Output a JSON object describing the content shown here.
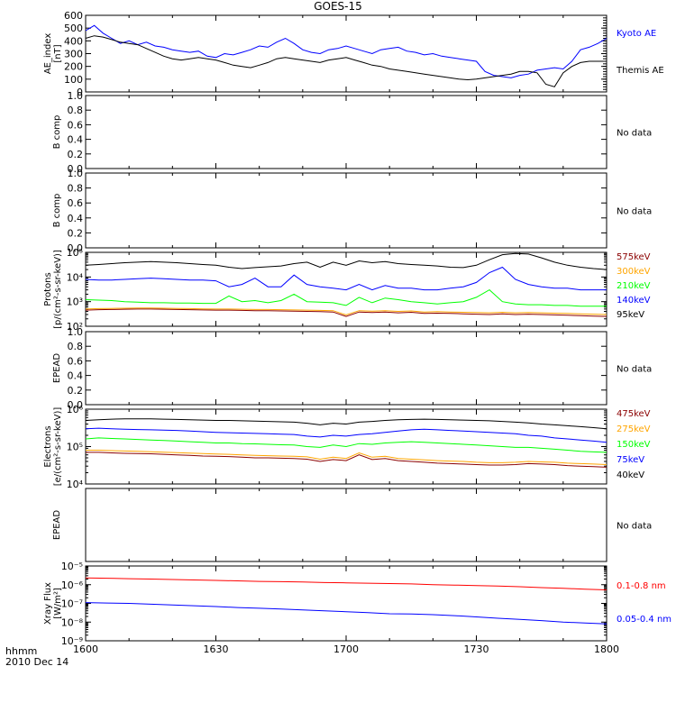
{
  "title": "GOES-15",
  "footer": {
    "line1": "hhmm",
    "line2": "2010 Dec 14"
  },
  "colors": {
    "frame": "#000000",
    "blue": "#0000ff",
    "black": "#000000",
    "green": "#00ff00",
    "orange": "#ffa500",
    "darkred": "#8b0000",
    "red": "#ff0000"
  },
  "chart_data": [
    {
      "id": "ae",
      "type": "line",
      "yscale": "linear",
      "ylim": [
        0,
        600
      ],
      "ylabel_lines": [
        "AE_index",
        "[nT]"
      ],
      "xlim": [
        0,
        120
      ],
      "xticks_minutes": [
        0,
        30,
        60,
        90,
        120
      ],
      "xtick_labels": [
        "1600",
        "1630",
        "1700",
        "1730",
        "1800"
      ],
      "yticks": [
        0,
        100,
        200,
        300,
        400,
        500,
        600
      ],
      "ytick_labels": [
        "0",
        "100",
        "200",
        "300",
        "400",
        "500",
        "600"
      ],
      "x": [
        0,
        2,
        4,
        6,
        8,
        10,
        12,
        14,
        16,
        18,
        20,
        22,
        24,
        26,
        28,
        30,
        32,
        34,
        36,
        38,
        40,
        42,
        44,
        46,
        48,
        50,
        52,
        54,
        56,
        58,
        60,
        62,
        64,
        66,
        68,
        70,
        72,
        74,
        76,
        78,
        80,
        82,
        84,
        86,
        88,
        90,
        92,
        94,
        96,
        98,
        100,
        102,
        104,
        106,
        108,
        110,
        112,
        114,
        116,
        118,
        120
      ],
      "series": [
        {
          "name": "Kyoto AE",
          "color": "blue",
          "values": [
            480,
            520,
            460,
            420,
            380,
            400,
            370,
            390,
            360,
            350,
            330,
            320,
            310,
            320,
            280,
            270,
            300,
            290,
            310,
            330,
            360,
            350,
            390,
            420,
            380,
            330,
            310,
            300,
            330,
            340,
            360,
            340,
            320,
            300,
            330,
            340,
            350,
            320,
            310,
            290,
            300,
            280,
            270,
            260,
            250,
            240,
            160,
            130,
            120,
            110,
            130,
            140,
            170,
            180,
            190,
            180,
            240,
            330,
            350,
            380,
            420
          ]
        },
        {
          "name": "Themis AE",
          "color": "black",
          "values": [
            420,
            440,
            430,
            410,
            390,
            380,
            370,
            340,
            310,
            280,
            260,
            250,
            260,
            270,
            260,
            250,
            230,
            210,
            200,
            190,
            210,
            230,
            260,
            270,
            260,
            250,
            240,
            230,
            250,
            260,
            270,
            250,
            230,
            210,
            200,
            180,
            170,
            160,
            150,
            140,
            130,
            120,
            110,
            100,
            95,
            100,
            110,
            120,
            130,
            140,
            160,
            160,
            150,
            60,
            40,
            150,
            200,
            230,
            240,
            240,
            240
          ]
        }
      ],
      "legend": [
        "Kyoto AE",
        "Themis AE"
      ]
    },
    {
      "id": "bcomp1",
      "type": "line",
      "yscale": "linear",
      "ylim": [
        0,
        1
      ],
      "ylabel_lines": [
        "B comp"
      ],
      "xlim": [
        0,
        120
      ],
      "yticks": [
        0,
        0.2,
        0.4,
        0.6,
        0.8,
        1.0
      ],
      "ytick_labels": [
        "0.0",
        "0.2",
        "0.4",
        "0.6",
        "0.8",
        "1.0"
      ],
      "series": [],
      "legend": [
        "No data"
      ]
    },
    {
      "id": "bcomp2",
      "type": "line",
      "yscale": "linear",
      "ylim": [
        0,
        1
      ],
      "ylabel_lines": [
        "B comp"
      ],
      "xlim": [
        0,
        120
      ],
      "yticks": [
        0,
        0.2,
        0.4,
        0.6,
        0.8,
        1.0
      ],
      "ytick_labels": [
        "0.0",
        "0.2",
        "0.4",
        "0.6",
        "0.8",
        "1.0"
      ],
      "series": [],
      "legend": [
        "No data"
      ]
    },
    {
      "id": "protons",
      "type": "line",
      "yscale": "log",
      "ylim": [
        100,
        100000
      ],
      "ylabel_lines": [
        "Protons",
        "[p/(cm²-s-sr-keV)]"
      ],
      "xlim": [
        0,
        120
      ],
      "yticks": [
        100,
        1000,
        10000,
        100000
      ],
      "ytick_labels": [
        "10²",
        "10³",
        "10⁴",
        "10⁵"
      ],
      "x": [
        0,
        3,
        6,
        9,
        12,
        15,
        18,
        21,
        24,
        27,
        30,
        33,
        36,
        39,
        42,
        45,
        48,
        51,
        54,
        57,
        60,
        63,
        66,
        69,
        72,
        75,
        78,
        81,
        84,
        87,
        90,
        93,
        96,
        99,
        102,
        105,
        108,
        111,
        114,
        117,
        120
      ],
      "series": [
        {
          "name": "575keV",
          "color": "darkred",
          "values": [
            450,
            470,
            480,
            490,
            500,
            500,
            490,
            480,
            470,
            460,
            450,
            450,
            440,
            430,
            430,
            420,
            410,
            400,
            390,
            380,
            250,
            380,
            360,
            380,
            350,
            370,
            330,
            340,
            330,
            320,
            310,
            300,
            320,
            300,
            310,
            300,
            290,
            280,
            270,
            260,
            250
          ]
        },
        {
          "name": "300keV",
          "color": "orange",
          "values": [
            500,
            520,
            530,
            540,
            550,
            550,
            540,
            530,
            520,
            510,
            500,
            500,
            490,
            480,
            480,
            470,
            460,
            450,
            440,
            430,
            290,
            430,
            410,
            430,
            400,
            420,
            380,
            390,
            380,
            370,
            360,
            350,
            370,
            350,
            360,
            350,
            340,
            330,
            320,
            310,
            300
          ]
        },
        {
          "name": "210keV",
          "color": "green",
          "values": [
            1200,
            1150,
            1100,
            1000,
            950,
            900,
            900,
            880,
            880,
            850,
            850,
            1700,
            1000,
            1100,
            900,
            1100,
            2000,
            1000,
            950,
            900,
            700,
            1500,
            900,
            1400,
            1200,
            1000,
            900,
            800,
            900,
            1000,
            1500,
            3000,
            1000,
            800,
            750,
            750,
            700,
            700,
            650,
            650,
            650
          ]
        },
        {
          "name": "140keV",
          "color": "blue",
          "values": [
            8000,
            7500,
            7500,
            8000,
            8500,
            9000,
            8500,
            8000,
            7500,
            7500,
            7000,
            4000,
            5000,
            9000,
            4000,
            4000,
            12000,
            5000,
            4000,
            3500,
            3000,
            5000,
            3000,
            4500,
            3500,
            3500,
            3000,
            3000,
            3500,
            4000,
            6000,
            15000,
            25000,
            8000,
            5000,
            4000,
            3500,
            3500,
            3000,
            3000,
            3000
          ]
        },
        {
          "name": "95keV",
          "color": "black",
          "values": [
            30000,
            32000,
            35000,
            38000,
            40000,
            42000,
            40000,
            38000,
            35000,
            32000,
            30000,
            25000,
            22000,
            24000,
            26000,
            28000,
            35000,
            40000,
            25000,
            40000,
            30000,
            45000,
            38000,
            42000,
            35000,
            32000,
            30000,
            28000,
            25000,
            24000,
            30000,
            50000,
            80000,
            90000,
            85000,
            60000,
            40000,
            30000,
            25000,
            22000,
            20000
          ]
        }
      ],
      "legend": [
        "575keV",
        "300keV",
        "210keV",
        "140keV",
        "95keV"
      ]
    },
    {
      "id": "epead1",
      "type": "line",
      "yscale": "linear",
      "ylim": [
        0,
        1
      ],
      "ylabel_lines": [
        "EPEAD"
      ],
      "xlim": [
        0,
        120
      ],
      "yticks": [
        0,
        0.2,
        0.4,
        0.6,
        0.8,
        1.0
      ],
      "ytick_labels": [
        "0.0",
        "0.2",
        "0.4",
        "0.6",
        "0.8",
        "1.0"
      ],
      "series": [],
      "legend": [
        "No data"
      ]
    },
    {
      "id": "electrons",
      "type": "line",
      "yscale": "log",
      "ylim": [
        10000,
        1000000
      ],
      "ylabel_lines": [
        "Electrons",
        "[e/(cm²-s-sr-keV)]"
      ],
      "xlim": [
        0,
        120
      ],
      "yticks": [
        10000,
        100000,
        1000000
      ],
      "ytick_labels": [
        "10⁴",
        "10⁵",
        "10⁶"
      ],
      "x": [
        0,
        3,
        6,
        9,
        12,
        15,
        18,
        21,
        24,
        27,
        30,
        33,
        36,
        39,
        42,
        45,
        48,
        51,
        54,
        57,
        60,
        63,
        66,
        69,
        72,
        75,
        78,
        81,
        84,
        87,
        90,
        93,
        96,
        99,
        102,
        105,
        108,
        111,
        114,
        117,
        120
      ],
      "series": [
        {
          "name": "475keV",
          "color": "darkred",
          "values": [
            70000,
            70000,
            68000,
            66000,
            65000,
            64000,
            62000,
            60000,
            58000,
            56000,
            55000,
            54000,
            52000,
            50000,
            50000,
            49000,
            48000,
            46000,
            40000,
            45000,
            42000,
            60000,
            45000,
            48000,
            42000,
            40000,
            38000,
            36000,
            35000,
            34000,
            33000,
            32000,
            32000,
            33000,
            35000,
            34000,
            33000,
            31000,
            30000,
            29000,
            28000
          ]
        },
        {
          "name": "275keV",
          "color": "orange",
          "values": [
            80000,
            80000,
            78000,
            76000,
            75000,
            73000,
            71000,
            69000,
            67000,
            65000,
            63000,
            62000,
            60000,
            58000,
            57000,
            56000,
            55000,
            53000,
            46000,
            52000,
            48000,
            68000,
            52000,
            55000,
            48000,
            46000,
            44000,
            42000,
            41000,
            40000,
            38000,
            37000,
            37000,
            38000,
            40000,
            39000,
            38000,
            36000,
            35000,
            34000,
            33000
          ]
        },
        {
          "name": "150keV",
          "color": "green",
          "values": [
            160000,
            170000,
            165000,
            160000,
            155000,
            150000,
            145000,
            140000,
            135000,
            130000,
            125000,
            125000,
            120000,
            118000,
            115000,
            112000,
            110000,
            100000,
            95000,
            110000,
            100000,
            120000,
            115000,
            125000,
            130000,
            135000,
            130000,
            125000,
            120000,
            115000,
            110000,
            105000,
            100000,
            95000,
            95000,
            90000,
            85000,
            80000,
            75000,
            72000,
            70000
          ]
        },
        {
          "name": "75keV",
          "color": "blue",
          "values": [
            300000,
            310000,
            300000,
            290000,
            285000,
            280000,
            275000,
            270000,
            260000,
            250000,
            240000,
            235000,
            230000,
            225000,
            220000,
            215000,
            210000,
            190000,
            180000,
            200000,
            190000,
            210000,
            220000,
            240000,
            260000,
            280000,
            290000,
            280000,
            270000,
            260000,
            250000,
            240000,
            230000,
            220000,
            200000,
            190000,
            170000,
            160000,
            150000,
            140000,
            130000
          ]
        },
        {
          "name": "40keV",
          "color": "black",
          "values": [
            500000,
            520000,
            540000,
            550000,
            550000,
            550000,
            540000,
            530000,
            520000,
            510000,
            500000,
            500000,
            490000,
            480000,
            470000,
            460000,
            450000,
            420000,
            380000,
            420000,
            400000,
            450000,
            470000,
            500000,
            520000,
            530000,
            540000,
            530000,
            520000,
            510000,
            500000,
            490000,
            470000,
            450000,
            430000,
            400000,
            380000,
            360000,
            340000,
            320000,
            300000
          ]
        }
      ],
      "legend": [
        "475keV",
        "275keV",
        "150keV",
        "75keV",
        "40keV"
      ]
    },
    {
      "id": "epead2",
      "type": "line",
      "yscale": "linear",
      "ylim": [
        0,
        1
      ],
      "ylabel_lines": [
        "EPEAD"
      ],
      "xlim": [
        0,
        120
      ],
      "yticks": [],
      "ytick_labels": [],
      "series": [],
      "legend": [
        "No data"
      ]
    },
    {
      "id": "xray",
      "type": "line",
      "yscale": "log",
      "ylim": [
        1e-09,
        1e-05
      ],
      "ylabel_lines": [
        "Xray Flux",
        "[W/m²]"
      ],
      "xlim": [
        0,
        120
      ],
      "yticks": [
        1e-09,
        1e-08,
        1e-07,
        1e-06,
        1e-05
      ],
      "ytick_labels": [
        "10⁻⁹",
        "10⁻⁸",
        "10⁻⁷",
        "10⁻⁶",
        "10⁻⁵"
      ],
      "x": [
        0,
        5,
        10,
        15,
        20,
        25,
        30,
        35,
        40,
        45,
        50,
        55,
        60,
        65,
        70,
        75,
        80,
        85,
        90,
        95,
        100,
        105,
        110,
        115,
        120
      ],
      "series": [
        {
          "name": "0.1-0.8 nm",
          "color": "red",
          "values": [
            2.3e-06,
            2.2e-06,
            2.1e-06,
            2e-06,
            1.9e-06,
            1.8e-06,
            1.7e-06,
            1.6e-06,
            1.5e-06,
            1.45e-06,
            1.4e-06,
            1.3e-06,
            1.25e-06,
            1.2e-06,
            1.15e-06,
            1.1e-06,
            1e-06,
            9.5e-07,
            9e-07,
            8.5e-07,
            7.8e-07,
            7e-07,
            6.4e-07,
            5.8e-07,
            5.3e-07
          ]
        },
        {
          "name": "0.05-0.4 nm",
          "color": "blue",
          "values": [
            1.1e-07,
            1.05e-07,
            1e-07,
            9e-08,
            8.2e-08,
            7.5e-08,
            6.8e-08,
            6e-08,
            5.5e-08,
            5e-08,
            4.5e-08,
            4e-08,
            3.6e-08,
            3.2e-08,
            2.8e-08,
            2.7e-08,
            2.5e-08,
            2.2e-08,
            1.9e-08,
            1.6e-08,
            1.4e-08,
            1.2e-08,
            1e-08,
            9e-09,
            8e-09
          ]
        }
      ],
      "legend": [
        "0.1-0.8 nm",
        "0.05-0.4 nm"
      ]
    }
  ]
}
